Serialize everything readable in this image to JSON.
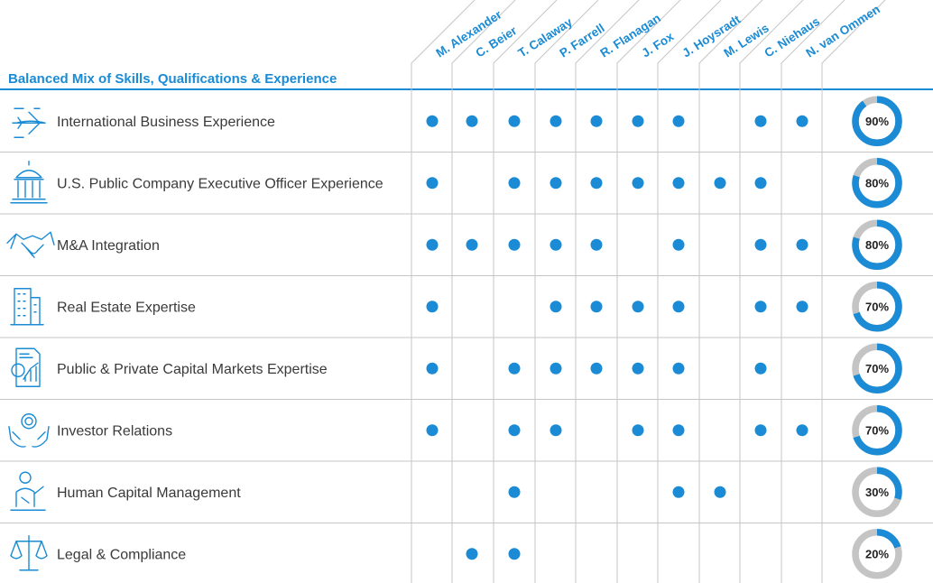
{
  "chart_data": {
    "type": "table",
    "title": "Balanced Mix of Skills, Qualifications & Experience",
    "directors": [
      "M. Alexander",
      "C. Beier",
      "T. Calaway",
      "P. Farrell",
      "R. Flanagan",
      "J. Fox",
      "J. Hoysradt",
      "M. Lewis",
      "C. Niehaus",
      "N. van Ommen"
    ],
    "rows": [
      {
        "skill": "International Business Experience",
        "icon": "airplane-icon",
        "marks": [
          1,
          1,
          1,
          1,
          1,
          1,
          1,
          0,
          1,
          1
        ],
        "percent": 90,
        "percent_label": "90%"
      },
      {
        "skill": "U.S. Public Company Executive Officer Experience",
        "icon": "capitol-building-icon",
        "marks": [
          1,
          0,
          1,
          1,
          1,
          1,
          1,
          1,
          1,
          0
        ],
        "percent": 80,
        "percent_label": "80%"
      },
      {
        "skill": "M&A Integration",
        "icon": "handshake-icon",
        "marks": [
          1,
          1,
          1,
          1,
          1,
          0,
          1,
          0,
          1,
          1
        ],
        "percent": 80,
        "percent_label": "80%"
      },
      {
        "skill": "Real Estate Expertise",
        "icon": "office-building-icon",
        "marks": [
          1,
          0,
          0,
          1,
          1,
          1,
          1,
          0,
          1,
          1
        ],
        "percent": 70,
        "percent_label": "70%"
      },
      {
        "skill": "Public & Private Capital Markets Expertise",
        "icon": "financial-report-icon",
        "marks": [
          1,
          0,
          1,
          1,
          1,
          1,
          1,
          0,
          1,
          0
        ],
        "percent": 70,
        "percent_label": "70%"
      },
      {
        "skill": "Investor Relations",
        "icon": "hands-gear-dollar-icon",
        "marks": [
          1,
          0,
          1,
          1,
          0,
          1,
          1,
          0,
          1,
          1
        ],
        "percent": 70,
        "percent_label": "70%"
      },
      {
        "skill": "Human Capital Management",
        "icon": "person-presenting-icon",
        "marks": [
          0,
          0,
          1,
          0,
          0,
          0,
          1,
          1,
          0,
          0
        ],
        "percent": 30,
        "percent_label": "30%"
      },
      {
        "skill": "Legal & Compliance",
        "icon": "scales-icon",
        "marks": [
          0,
          1,
          1,
          0,
          0,
          0,
          0,
          0,
          0,
          0
        ],
        "percent": 20,
        "percent_label": "20%"
      }
    ],
    "colors": {
      "accent": "#1a8bd4",
      "donut_track": "#c4c4c4",
      "grid": "#c6c6c6",
      "text": "#3a3a3a"
    }
  }
}
